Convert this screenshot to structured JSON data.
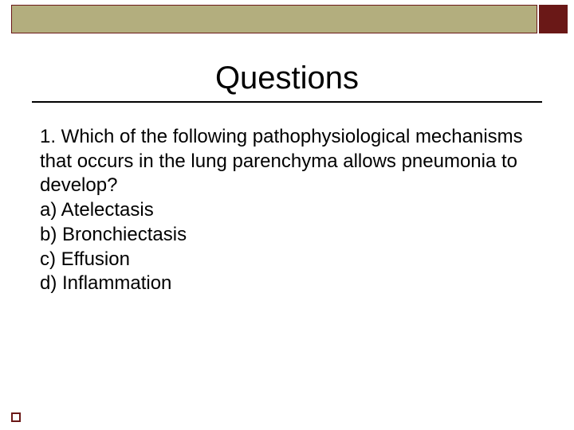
{
  "banner": {
    "main_color": "#b3ae7e",
    "right_color": "#6a1817",
    "border_color": "#6a1817"
  },
  "title": "Questions",
  "title_rule_color": "#000000",
  "question": {
    "stem": "1. Which of the following pathophysiological mechanisms that occurs in the lung parenchyma allows pneumonia to develop?",
    "options": {
      "a": "a) Atelectasis",
      "b": "b) Bronchiectasis",
      "c": "c) Effusion",
      "d": "d) Inflammation"
    }
  },
  "footer_marker": {
    "border_color": "#6a1817",
    "fill_color": "#ffffff"
  },
  "typography": {
    "title_fontsize": 40,
    "body_fontsize": 24,
    "font_family": "Arial"
  },
  "background_color": "#ffffff"
}
